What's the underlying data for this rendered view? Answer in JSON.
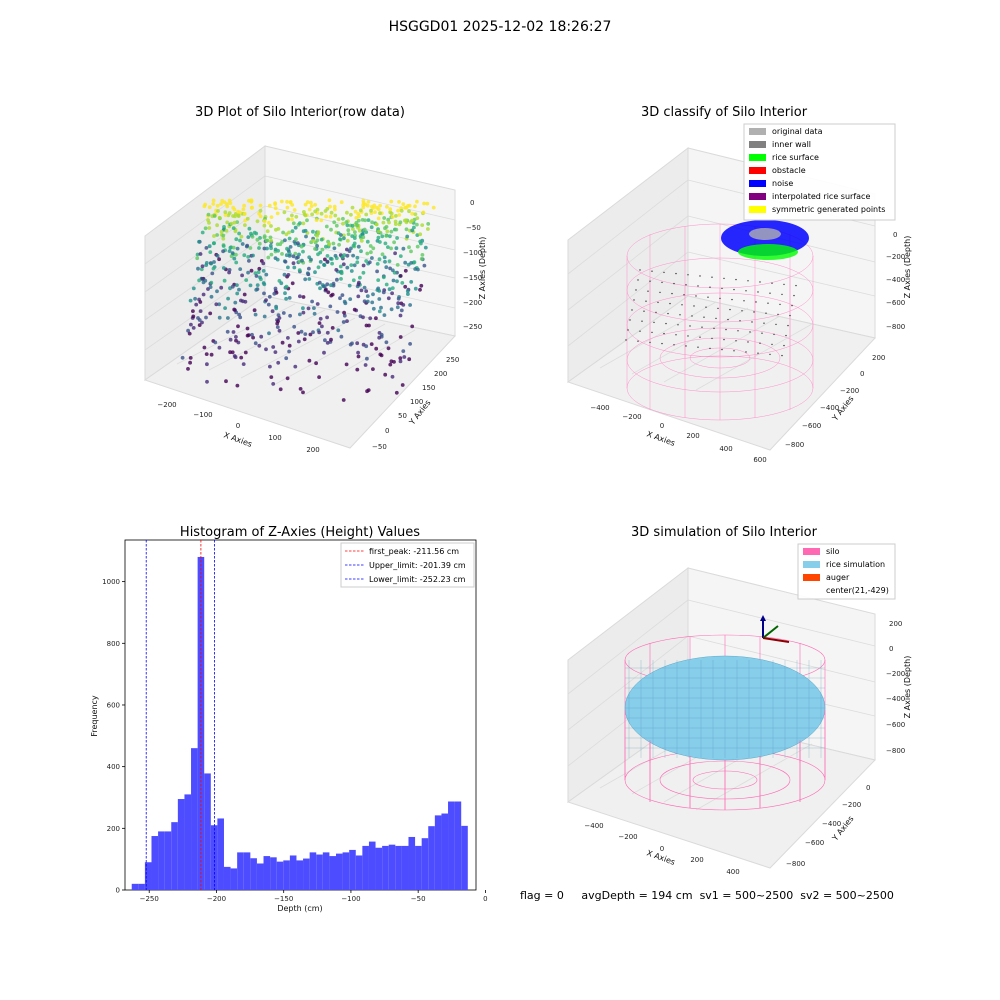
{
  "suptitle": "HSGGD01 2025-12-02 18:26:27",
  "footer": {
    "flag": "flag = 0",
    "avgDepth": "avgDepth = 194 cm",
    "sv1": "sv1 = 500~2500",
    "sv2": "sv2 = 500~2500"
  },
  "colors": {
    "histogram": "#4d4dff",
    "peak_line": "#ff0000",
    "limit_line": "#0000ff",
    "silo": "#ff69b4",
    "rice": "#87ceeb",
    "auger": "#ff4500"
  },
  "chart_data": [
    {
      "type": "scatter",
      "projection": "3d",
      "title": "3D Plot of Silo Interior(row data)",
      "xlabel": "X Axies",
      "ylabel": "Y Axies",
      "zlabel": "Z Axies (Depth)",
      "x_ticks": [
        "−200",
        "−100",
        "0",
        "100",
        "200"
      ],
      "y_ticks": [
        "−50",
        "0",
        "50",
        "100",
        "150",
        "200",
        "250"
      ],
      "z_ticks": [
        "0",
        "−50",
        "−100",
        "−150",
        "−200",
        "−250"
      ],
      "colormap": "viridis",
      "grid": true
    },
    {
      "type": "scatter",
      "projection": "3d",
      "title": "3D classify of Silo Interior",
      "xlabel": "X Axies",
      "ylabel": "Y Axies",
      "zlabel": "Z Axies (Depth)",
      "x_ticks": [
        "−400",
        "−200",
        "0",
        "200",
        "400",
        "600"
      ],
      "y_ticks": [
        "200",
        "0",
        "−200",
        "−400",
        "−600",
        "−800"
      ],
      "z_ticks": [
        "0",
        "−200",
        "−400",
        "−600",
        "−800"
      ],
      "legend_position": "top-right",
      "legend": [
        {
          "label": "original data",
          "color": "#b0b0b0"
        },
        {
          "label": "inner wall",
          "color": "#808080"
        },
        {
          "label": "rice surface",
          "color": "#00ff00"
        },
        {
          "label": "obstacle",
          "color": "#ff0000"
        },
        {
          "label": "noise",
          "color": "#0000ff"
        },
        {
          "label": "interpolated rice surface",
          "color": "#800080"
        },
        {
          "label": "symmetric generated points",
          "color": "#ffff00"
        }
      ],
      "grid": true
    },
    {
      "type": "bar",
      "title": "Histogram of Z-Axies (Height) Values",
      "xlabel": "Depth (cm)",
      "ylabel": "Frequency",
      "xlim": [
        -268,
        -7
      ],
      "ylim": [
        0,
        1135
      ],
      "x_ticks": [
        -250,
        -200,
        -150,
        -100,
        -50,
        0
      ],
      "x_tick_labels": [
        "−250",
        "−200",
        "−150",
        "−100",
        "−50",
        "0"
      ],
      "y_ticks": [
        0,
        200,
        400,
        600,
        800,
        1000
      ],
      "bins": [
        {
          "x0": -263,
          "x1": -258.1,
          "y": 20
        },
        {
          "x0": -258.1,
          "x1": -253.2,
          "y": 20
        },
        {
          "x0": -253.2,
          "x1": -248.3,
          "y": 90
        },
        {
          "x0": -248.3,
          "x1": -243.4,
          "y": 175
        },
        {
          "x0": -243.4,
          "x1": -238.5,
          "y": 190
        },
        {
          "x0": -238.5,
          "x1": -233.6,
          "y": 190
        },
        {
          "x0": -233.6,
          "x1": -228.7,
          "y": 220
        },
        {
          "x0": -228.7,
          "x1": -223.8,
          "y": 295
        },
        {
          "x0": -223.8,
          "x1": -218.9,
          "y": 310
        },
        {
          "x0": -218.9,
          "x1": -214.0,
          "y": 460
        },
        {
          "x0": -214.0,
          "x1": -209.1,
          "y": 1080
        },
        {
          "x0": -209.1,
          "x1": -204.2,
          "y": 378
        },
        {
          "x0": -204.2,
          "x1": -199.3,
          "y": 210
        },
        {
          "x0": -199.3,
          "x1": -194.4,
          "y": 232
        },
        {
          "x0": -194.4,
          "x1": -189.5,
          "y": 75
        },
        {
          "x0": -189.5,
          "x1": -184.6,
          "y": 70
        },
        {
          "x0": -184.6,
          "x1": -179.7,
          "y": 122
        },
        {
          "x0": -179.7,
          "x1": -174.8,
          "y": 122
        },
        {
          "x0": -174.8,
          "x1": -169.9,
          "y": 103
        },
        {
          "x0": -169.9,
          "x1": -165.0,
          "y": 86
        },
        {
          "x0": -165.0,
          "x1": -160.1,
          "y": 110
        },
        {
          "x0": -160.1,
          "x1": -155.2,
          "y": 106
        },
        {
          "x0": -155.2,
          "x1": -150.3,
          "y": 92
        },
        {
          "x0": -150.3,
          "x1": -145.4,
          "y": 96
        },
        {
          "x0": -145.4,
          "x1": -140.5,
          "y": 112
        },
        {
          "x0": -140.5,
          "x1": -135.6,
          "y": 96
        },
        {
          "x0": -135.6,
          "x1": -130.7,
          "y": 102
        },
        {
          "x0": -130.7,
          "x1": -125.8,
          "y": 122
        },
        {
          "x0": -125.8,
          "x1": -120.9,
          "y": 115
        },
        {
          "x0": -120.9,
          "x1": -116.0,
          "y": 122
        },
        {
          "x0": -116.0,
          "x1": -111.1,
          "y": 110
        },
        {
          "x0": -111.1,
          "x1": -106.2,
          "y": 118
        },
        {
          "x0": -106.2,
          "x1": -101.3,
          "y": 122
        },
        {
          "x0": -101.3,
          "x1": -96.4,
          "y": 130
        },
        {
          "x0": -96.4,
          "x1": -91.5,
          "y": 112
        },
        {
          "x0": -91.5,
          "x1": -86.6,
          "y": 143
        },
        {
          "x0": -86.6,
          "x1": -81.7,
          "y": 157
        },
        {
          "x0": -81.7,
          "x1": -76.8,
          "y": 137
        },
        {
          "x0": -76.8,
          "x1": -71.9,
          "y": 143
        },
        {
          "x0": -71.9,
          "x1": -67.0,
          "y": 147
        },
        {
          "x0": -67.0,
          "x1": -62.1,
          "y": 143
        },
        {
          "x0": -62.1,
          "x1": -57.2,
          "y": 143
        },
        {
          "x0": -57.2,
          "x1": -52.3,
          "y": 172
        },
        {
          "x0": -52.3,
          "x1": -47.4,
          "y": 143
        },
        {
          "x0": -47.4,
          "x1": -42.5,
          "y": 168
        },
        {
          "x0": -42.5,
          "x1": -37.6,
          "y": 207
        },
        {
          "x0": -37.6,
          "x1": -32.7,
          "y": 242
        },
        {
          "x0": -32.7,
          "x1": -27.8,
          "y": 248
        },
        {
          "x0": -27.8,
          "x1": -22.9,
          "y": 287
        },
        {
          "x0": -22.9,
          "x1": -18.0,
          "y": 287
        },
        {
          "x0": -18.0,
          "x1": -13.1,
          "y": 208
        }
      ],
      "vlines": [
        {
          "name": "first_peak",
          "label": "first_peak: -211.56 cm",
          "x": -211.56,
          "color": "#ff0000"
        },
        {
          "name": "upper_limit",
          "label": "Upper_limit: -201.39 cm",
          "x": -201.39,
          "color": "#0000ff"
        },
        {
          "name": "lower_limit",
          "label": "Lower_limit: -252.23 cm",
          "x": -252.23,
          "color": "#0000ff"
        }
      ],
      "legend_position": "top-right",
      "grid": false
    },
    {
      "type": "scatter",
      "projection": "3d",
      "title": "3D simulation of Silo Interior",
      "xlabel": "X Axies",
      "ylabel": "Y Axies",
      "zlabel": "Z Axies (Depth)",
      "x_ticks": [
        "−400",
        "−200",
        "0",
        "200",
        "400"
      ],
      "y_ticks": [
        "0",
        "−200",
        "−400",
        "−600",
        "−800"
      ],
      "z_ticks": [
        "200",
        "0",
        "−200",
        "−400",
        "−600",
        "−800"
      ],
      "legend_position": "top-right",
      "legend": [
        {
          "label": "silo",
          "color": "#ff69b4"
        },
        {
          "label": "rice simulation",
          "color": "#87ceeb"
        },
        {
          "label": "auger",
          "color": "#ff4500"
        },
        {
          "label": "center(21,-429)",
          "color": ""
        }
      ],
      "grid": true
    }
  ]
}
